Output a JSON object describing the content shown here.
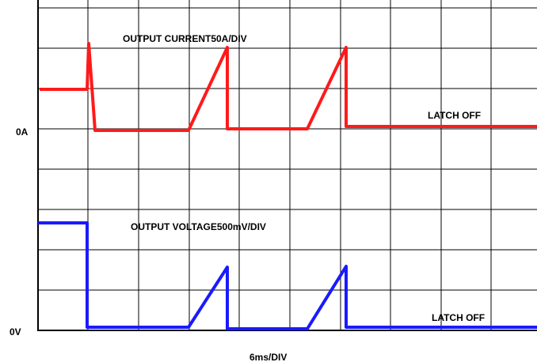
{
  "current": {
    "label": "OUTPUT CURRENT50A/DIV",
    "latch": "LATCH OFF",
    "zero": "0A"
  },
  "voltage": {
    "label": "OUTPUT VOLTAGE500mV/DIV",
    "latch": "LATCH OFF",
    "zero": "0V"
  },
  "time": {
    "label": "6ms/DIV"
  }
}
